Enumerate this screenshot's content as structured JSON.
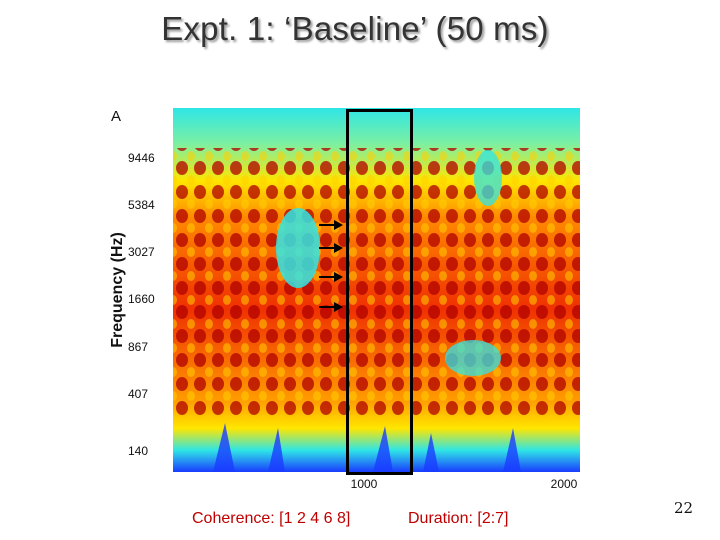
{
  "slide": {
    "title": "Expt. 1: ‘Baseline’ (50 ms)",
    "number": "22"
  },
  "figure": {
    "panel_letter": "A",
    "y_axis_label": "Frequency (Hz)",
    "y_ticks": [
      "9446",
      "5384",
      "3027",
      "1660",
      "867",
      "407",
      "140"
    ],
    "x_ticks": [
      "1000",
      "2000"
    ],
    "colors": {
      "low": "#1a3cff",
      "mid": "#2fe6e6",
      "high": "#ffe600",
      "peak": "#e00000",
      "box": "#000000"
    }
  },
  "captions": {
    "coherence": "Coherence: [1 2 4 6 8]",
    "duration": "Duration: [2:7]"
  }
}
